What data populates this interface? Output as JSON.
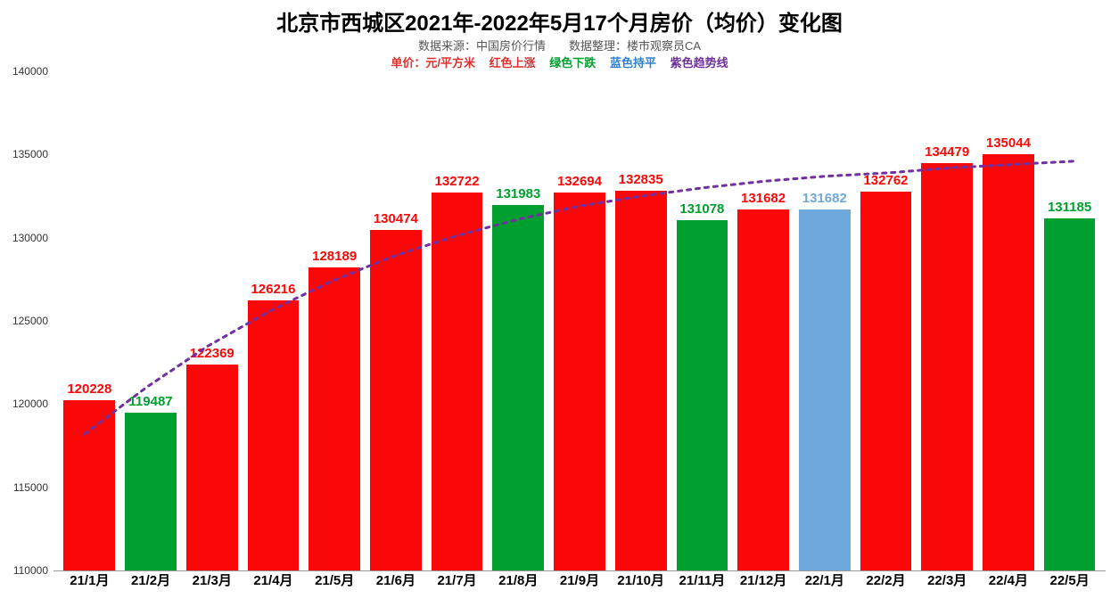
{
  "chart": {
    "type": "bar",
    "title": "北京市西城区2021年-2022年5月17个月房价（均价）变化图",
    "title_fontsize": 24,
    "title_color": "#000000",
    "subtitle": "数据来源：中国房价行情　　数据整理：楼市观察员CA",
    "subtitle_fontsize": 13,
    "subtitle_color": "#555555",
    "legend": {
      "unit": {
        "text": "单价：元/平方米",
        "color": "#e03030"
      },
      "up": {
        "text": "红色上涨",
        "color": "#e03030"
      },
      "down": {
        "text": "绿色下跌",
        "color": "#00a030"
      },
      "flat": {
        "text": "蓝色持平",
        "color": "#3080d0"
      },
      "trend": {
        "text": "紫色趋势线",
        "color": "#7030a0"
      },
      "fontsize": 13
    },
    "background_color": "#ffffff",
    "bar_width": 0.84,
    "y_axis": {
      "min": 110000,
      "max": 140000,
      "tick_step": 5000,
      "ticks": [
        110000,
        115000,
        120000,
        125000,
        130000,
        135000,
        140000
      ],
      "fontsize": 12,
      "color": "#333333"
    },
    "x_axis": {
      "fontsize": 15,
      "fontweight": "bold",
      "color": "#000000"
    },
    "colors": {
      "up": "#fa0808",
      "down": "#00a030",
      "flat": "#6fa8dc"
    },
    "label_fontsize": 15,
    "label_fontweight": "bold",
    "categories": [
      "21/1月",
      "21/2月",
      "21/3月",
      "21/4月",
      "21/5月",
      "21/6月",
      "21/7月",
      "21/8月",
      "21/9月",
      "21/10月",
      "21/11月",
      "21/12月",
      "22/1月",
      "22/2月",
      "22/3月",
      "22/4月",
      "22/5月"
    ],
    "values": [
      120228,
      119487,
      122369,
      126216,
      128189,
      130474,
      132722,
      131983,
      132694,
      132835,
      131078,
      131682,
      131682,
      132762,
      134479,
      135044,
      131185
    ],
    "bar_types": [
      "up",
      "down",
      "up",
      "up",
      "up",
      "up",
      "up",
      "down",
      "up",
      "up",
      "down",
      "up",
      "flat",
      "up",
      "up",
      "up",
      "down"
    ],
    "trendline": {
      "color": "#7030a0",
      "dash": "4,6",
      "width": 3,
      "points": [
        118200,
        121000,
        123500,
        125600,
        127400,
        128900,
        130100,
        131100,
        131900,
        132500,
        133000,
        133400,
        133700,
        133900,
        134200,
        134400,
        134600
      ]
    }
  }
}
